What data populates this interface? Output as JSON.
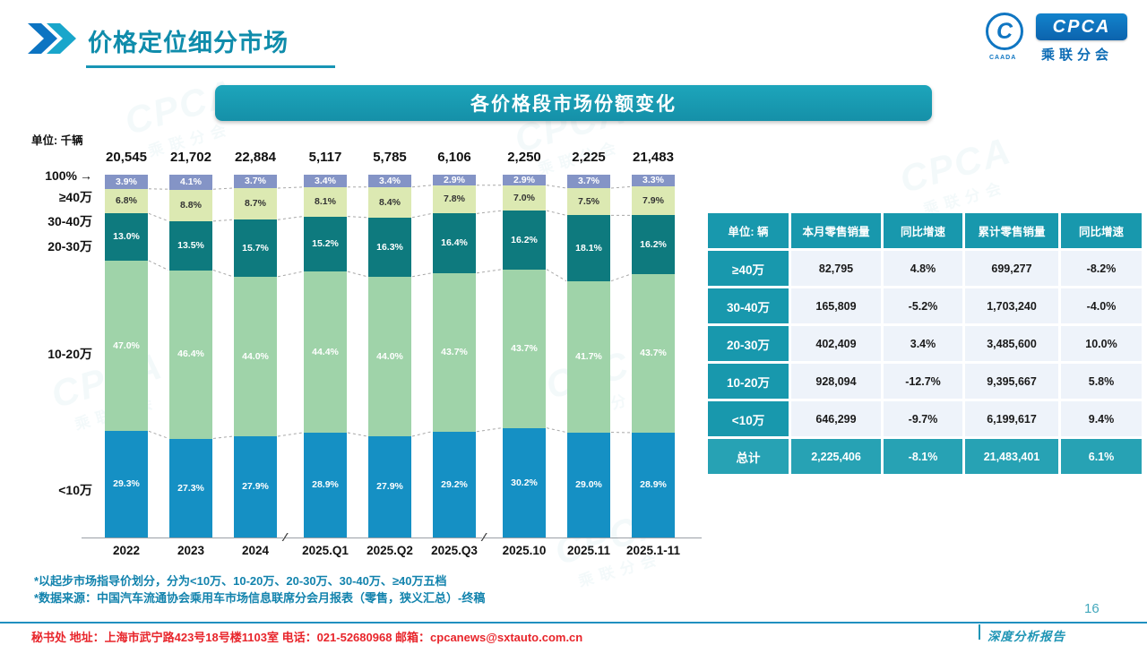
{
  "header": {
    "title": "价格定位细分市场",
    "logo": {
      "cpca": "CPCA",
      "sub_label": "乘联分会",
      "emblem": "C",
      "emblem_caption": "CAADA"
    }
  },
  "banner": {
    "title": "各价格段市场份额变化"
  },
  "chart": {
    "unit_label": "单位: 千辆"
  },
  "chart_data": {
    "type": "bar",
    "stacked": true,
    "value_format": "percent",
    "title": "各价格段市场份额变化",
    "unit": "千辆",
    "categories": [
      "2022",
      "2023",
      "2024",
      "2025.Q1",
      "2025.Q2",
      "2025.Q3",
      "2025.10",
      "2025.11",
      "2025.1-11"
    ],
    "totals": [
      "20,545",
      "21,702",
      "22,884",
      "5,117",
      "5,785",
      "6,106",
      "2,250",
      "2,225",
      "21,483"
    ],
    "series": [
      {
        "name": "<10万",
        "color": "#1590c4",
        "label_color": "#ffffff",
        "values": [
          29.3,
          27.3,
          27.9,
          28.9,
          27.9,
          29.2,
          30.2,
          29.0,
          28.9
        ]
      },
      {
        "name": "10-20万",
        "color": "#9fd3a9",
        "label_color": "#ffffff",
        "values": [
          47.0,
          46.4,
          44.0,
          44.4,
          44.0,
          43.7,
          43.7,
          41.7,
          43.7
        ]
      },
      {
        "name": "20-30万",
        "color": "#0e7a7e",
        "label_color": "#ffffff",
        "values": [
          13.0,
          13.5,
          15.7,
          15.2,
          16.3,
          16.4,
          16.2,
          18.1,
          16.2
        ]
      },
      {
        "name": "30-40万",
        "color": "#dce9b2",
        "label_color": "#333333",
        "values": [
          6.8,
          8.8,
          8.7,
          8.1,
          8.4,
          7.8,
          7.0,
          7.5,
          7.9
        ]
      },
      {
        "name": "≥40万",
        "color": "#8494c6",
        "label_color": "#ffffff",
        "values": [
          3.9,
          4.1,
          3.7,
          3.4,
          3.4,
          2.9,
          2.9,
          3.7,
          3.3
        ]
      }
    ],
    "y_axis_labels": [
      "100%",
      "≥40万",
      "30-40万",
      "20-30万",
      "10-20万",
      "<10万"
    ],
    "group_breaks_after": [
      2,
      5
    ],
    "break_mark": "∕∕",
    "ylim": [
      0,
      100
    ],
    "legend": "none"
  },
  "table": {
    "headers": [
      "单位: 辆",
      "本月零售销量",
      "同比增速",
      "累计零售销量",
      "同比增速"
    ],
    "rows": [
      [
        "≥40万",
        "82,795",
        "4.8%",
        "699,277",
        "-8.2%"
      ],
      [
        "30-40万",
        "165,809",
        "-5.2%",
        "1,703,240",
        "-4.0%"
      ],
      [
        "20-30万",
        "402,409",
        "3.4%",
        "3,485,600",
        "10.0%"
      ],
      [
        "10-20万",
        "928,094",
        "-12.7%",
        "9,395,667",
        "5.8%"
      ],
      [
        "<10万",
        "646,299",
        "-9.7%",
        "6,199,617",
        "9.4%"
      ],
      [
        "总计",
        "2,225,406",
        "-8.1%",
        "21,483,401",
        "6.1%"
      ]
    ]
  },
  "footnotes": [
    "*以起步市场指导价划分，分为<10万、10-20万、20-30万、30-40万、≥40万五档",
    "*数据来源：中国汽车流通协会乘用车市场信息联席分会月报表（零售，狭义汇总）-终稿"
  ],
  "footer": {
    "contact": "秘书处  地址：上海市武宁路423号18号楼1103室  电话：021-52680968  邮箱：cpcanews@sxtauto.com.cn",
    "report_label": "深度分析报告",
    "page_number": "16"
  },
  "watermark": {
    "text": "CPCA",
    "sub": "乘联分会"
  }
}
